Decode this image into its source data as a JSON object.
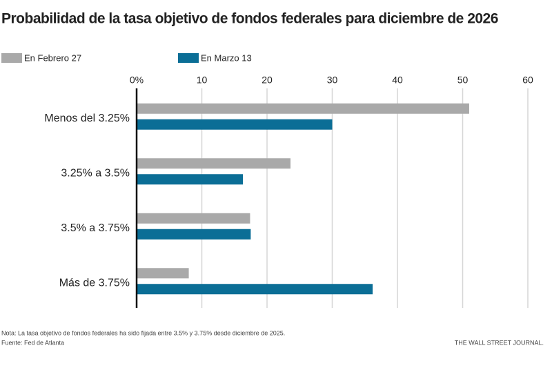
{
  "chart_data": {
    "type": "hbar",
    "title": "Probabilidad de la tasa objetivo de fondos federales para diciembre de 2026",
    "categories": [
      "Menos del 3.25%",
      "3.25% a 3.5%",
      "3.5% a 3.75%",
      "Más de 3.75%"
    ],
    "series": [
      {
        "name": "En Febrero 27",
        "color": "#a9a9a9",
        "values": [
          51,
          23.6,
          17.4,
          8
        ]
      },
      {
        "name": "En Marzo 13",
        "color": "#0b6e96",
        "values": [
          30,
          16.3,
          17.5,
          36.2
        ]
      }
    ],
    "xlim": [
      0,
      60
    ],
    "xticks": [
      {
        "value": 0,
        "label": "0%"
      },
      10,
      20,
      30,
      40,
      50,
      60
    ],
    "grid": true,
    "note": "Nota: La tasa objetivo de fondos federales ha sido fijada entre 3.5% y 3.75% desde diciembre de 2025.",
    "source": "Fuente: Fed de Atlanta",
    "credit": "THE WALL STREET JOURNAL."
  }
}
